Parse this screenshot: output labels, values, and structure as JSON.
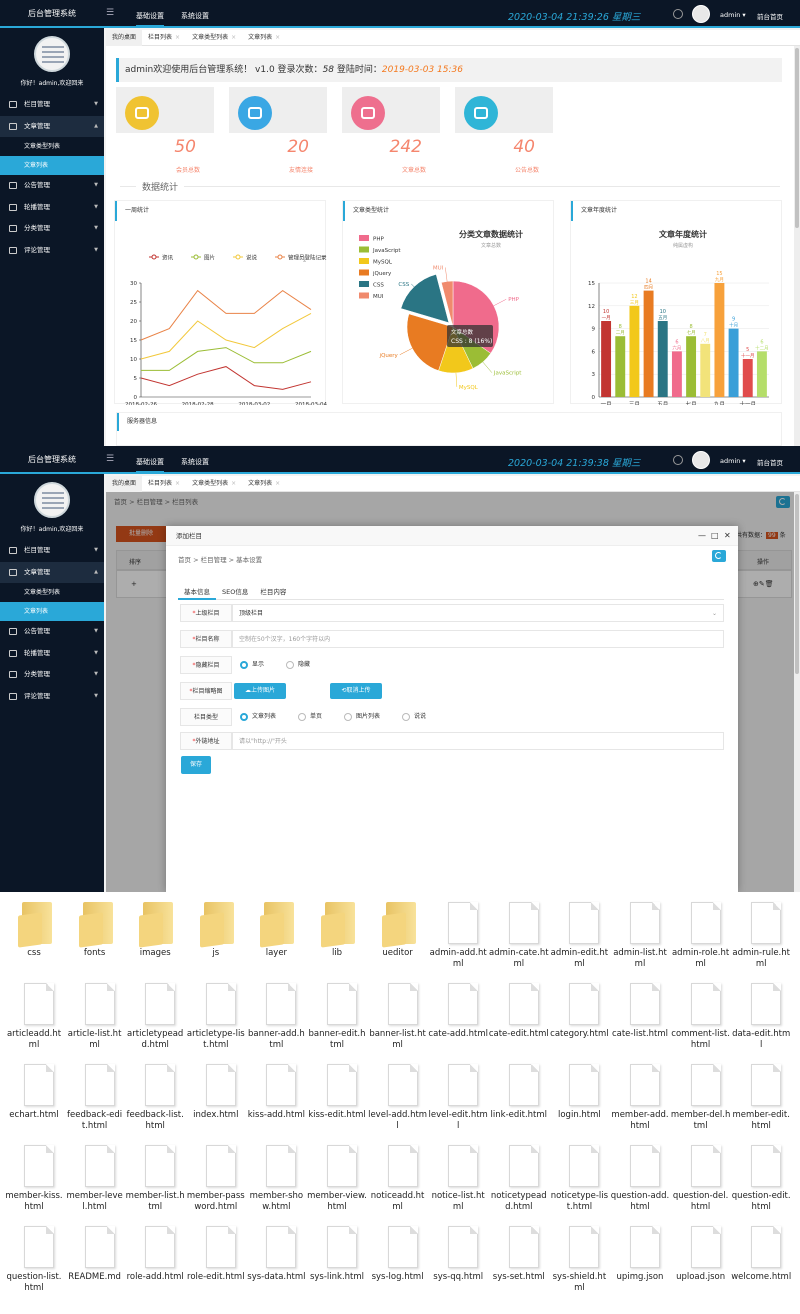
{
  "app": {
    "title": "后台管理系统",
    "nav_tabs": [
      "基础设置",
      "系统设置"
    ],
    "user": "admin ▾",
    "home_link": "前台首页",
    "welcome": "你好！admin,欢迎回来"
  },
  "screen1": {
    "clock": "2020-03-04  21:39:26  星期三",
    "sidebar": [
      {
        "label": "栏目管理",
        "arrow": "▼"
      },
      {
        "label": "文章管理",
        "arrow": "▲"
      },
      {
        "label": "文章类型列表",
        "sub": true
      },
      {
        "label": "文章列表",
        "sub": true,
        "active": true
      },
      {
        "label": "公告管理",
        "arrow": "▼"
      },
      {
        "label": "轮播管理",
        "arrow": "▼"
      },
      {
        "label": "分类管理",
        "arrow": "▼"
      },
      {
        "label": "评论管理",
        "arrow": "▼"
      }
    ],
    "tabs": [
      "我的桌面",
      "栏目列表",
      "文章类型列表",
      "文章列表"
    ],
    "welcome_box": {
      "text": "admin欢迎使用后台管理系统！ v1.0   登录次数：",
      "count": "58",
      "time_label": "   登陆时间：",
      "time": "2019-03-03 15:36"
    },
    "stats": [
      {
        "value": "50",
        "label": "会员总数",
        "color": "#f0c332"
      },
      {
        "value": "20",
        "label": "友情连接",
        "color": "#3aa7e4"
      },
      {
        "value": "242",
        "label": "文章总数",
        "color": "#ee6f8e"
      },
      {
        "value": "40",
        "label": "公告总数",
        "color": "#2fb5d7"
      }
    ],
    "section_title": "数据统计",
    "server_title": "服务器信息"
  },
  "chart_data": [
    {
      "type": "line",
      "panel_title": "一周统计",
      "x": [
        "2018-02-26",
        "2018-02-27",
        "2018-02-28",
        "2018-03-01",
        "2018-03-02",
        "2018-03-03",
        "2018-03-04"
      ],
      "x_ticks": [
        "2018-02-26",
        "2018-02-28",
        "2018-03-02",
        "2018-03-04"
      ],
      "ylim": [
        0,
        30
      ],
      "yticks": [
        0,
        5,
        10,
        15,
        20,
        25,
        30
      ],
      "series": [
        {
          "name": "资讯",
          "color": "#c23531",
          "values": [
            5,
            3,
            6,
            8,
            3,
            2,
            4
          ]
        },
        {
          "name": "图片",
          "color": "#9bbd35",
          "values": [
            7,
            7,
            12,
            13,
            9,
            9,
            12
          ]
        },
        {
          "name": "说说",
          "color": "#f2c83b",
          "values": [
            10,
            12,
            20,
            15,
            13,
            18,
            22
          ]
        },
        {
          "name": "管理员登陆记录",
          "color": "#e98347",
          "values": [
            15,
            18,
            28,
            22,
            22,
            28,
            23
          ]
        }
      ],
      "grid": false
    },
    {
      "type": "pie",
      "panel_title": "文章类型统计",
      "title": "分类文章数据统计",
      "subtitle": "文章总数",
      "slices": [
        {
          "name": "PHP",
          "value": 17,
          "color": "#f06b8c"
        },
        {
          "name": "JavaScript",
          "value": 4,
          "color": "#9bbd35"
        },
        {
          "name": "MySQL",
          "value": 6,
          "color": "#f2c81b"
        },
        {
          "name": "jQuery",
          "value": 12,
          "color": "#e87b22"
        },
        {
          "name": "CSS",
          "value": 8,
          "color": "#2a7584"
        },
        {
          "name": "MUI",
          "value": 2,
          "color": "#f08a6d"
        }
      ],
      "tooltip_title": "文章总数",
      "tooltip_value": "CSS : 8 (16%)",
      "legend": "left"
    },
    {
      "type": "bar",
      "panel_title": "文章年度统计",
      "title": "文章年度统计",
      "subtitle": "纯属虚构",
      "categories": [
        "一月",
        "二月",
        "三月",
        "四月",
        "五月",
        "六月",
        "七月",
        "八月",
        "九月",
        "十月",
        "十一月",
        "十二月"
      ],
      "x_ticks": [
        "一月",
        "三月",
        "五月",
        "七月",
        "九月",
        "十一月"
      ],
      "values": [
        10,
        8,
        12,
        14,
        10,
        6,
        8,
        7,
        15,
        9,
        5,
        6
      ],
      "colors": [
        "#c23531",
        "#9bbd35",
        "#f2c81b",
        "#e87b22",
        "#2a7584",
        "#f06b8c",
        "#9bbd35",
        "#f2e37a",
        "#f7a13b",
        "#3a9fd8",
        "#e04c4c",
        "#b5de6a"
      ],
      "ylim": [
        0,
        15
      ],
      "yticks": [
        0,
        3,
        6,
        9,
        12,
        15
      ],
      "grid": true
    }
  ],
  "screen2": {
    "clock": "2020-03-04  21:39:38  星期三",
    "sidebar": [
      {
        "label": "栏目管理",
        "arrow": "▼"
      },
      {
        "label": "文章管理",
        "arrow": "▲"
      },
      {
        "label": "文章类型列表",
        "sub": true
      },
      {
        "label": "文章列表",
        "sub": true,
        "active": true
      },
      {
        "label": "公告管理",
        "arrow": "▼"
      },
      {
        "label": "轮播管理",
        "arrow": "▼"
      },
      {
        "label": "分类管理",
        "arrow": "▼"
      },
      {
        "label": "评论管理",
        "arrow": "▼"
      }
    ],
    "tabs": [
      "我的桌面",
      "栏目列表",
      "文章类型列表",
      "文章列表"
    ],
    "breadcrumb": "首页  >  栏目管理  >  栏目列表",
    "bg_delete_btn": "批量删除",
    "bg_count_label": "共有数据：",
    "bg_count": "99",
    "bg_count_unit": "条",
    "bg_col_sort": "排序",
    "bg_col_op": "操作",
    "modal": {
      "title": "添加栏目",
      "breadcrumb": "首页  >  栏目管理  >  基本设置",
      "tabs": [
        "基本信息",
        "SEO信息",
        "栏目内容"
      ],
      "parent_label": "上级栏目",
      "parent_value": "顶级栏目",
      "name_label": "栏目名称",
      "name_placeholder": "空制在50个汉字，160个字符以内",
      "hidden_label": "隐藏栏目",
      "hidden_options": [
        "显示",
        "隐藏"
      ],
      "thumb_label": "栏目缩略图",
      "upload_btn": "上传图片",
      "cancel_upload_btn": "取消上传",
      "type_label": "栏目类型",
      "type_options": [
        "文章列表",
        "单页",
        "图片列表",
        "说说"
      ],
      "link_label": "外链地址",
      "link_placeholder": "请以\"http://\"开头",
      "save_btn": "保存"
    }
  },
  "files": [
    {
      "name": "css",
      "type": "folder"
    },
    {
      "name": "fonts",
      "type": "folder"
    },
    {
      "name": "images",
      "type": "folder"
    },
    {
      "name": "js",
      "type": "folder"
    },
    {
      "name": "layer",
      "type": "folder"
    },
    {
      "name": "lib",
      "type": "folder"
    },
    {
      "name": "ueditor",
      "type": "folder"
    },
    {
      "name": "admin-add.html",
      "type": "file"
    },
    {
      "name": "admin-cate.html",
      "type": "file"
    },
    {
      "name": "admin-edit.html",
      "type": "file"
    },
    {
      "name": "admin-list.html",
      "type": "file"
    },
    {
      "name": "admin-role.html",
      "type": "file"
    },
    {
      "name": "admin-rule.html",
      "type": "file"
    },
    {
      "name": "articleadd.html",
      "type": "file"
    },
    {
      "name": "article-list.html",
      "type": "file"
    },
    {
      "name": "articletypeadd.html",
      "type": "file"
    },
    {
      "name": "articletype-list.html",
      "type": "file"
    },
    {
      "name": "banner-add.html",
      "type": "file"
    },
    {
      "name": "banner-edit.html",
      "type": "file"
    },
    {
      "name": "banner-list.html",
      "type": "file"
    },
    {
      "name": "cate-add.html",
      "type": "file"
    },
    {
      "name": "cate-edit.html",
      "type": "file"
    },
    {
      "name": "category.html",
      "type": "file"
    },
    {
      "name": "cate-list.html",
      "type": "file"
    },
    {
      "name": "comment-list.html",
      "type": "file"
    },
    {
      "name": "data-edit.html",
      "type": "file"
    },
    {
      "name": "echart.html",
      "type": "file"
    },
    {
      "name": "feedback-edit.html",
      "type": "file"
    },
    {
      "name": "feedback-list.html",
      "type": "file"
    },
    {
      "name": "index.html",
      "type": "file"
    },
    {
      "name": "kiss-add.html",
      "type": "file"
    },
    {
      "name": "kiss-edit.html",
      "type": "file"
    },
    {
      "name": "level-add.html",
      "type": "file"
    },
    {
      "name": "level-edit.html",
      "type": "file"
    },
    {
      "name": "link-edit.html",
      "type": "file"
    },
    {
      "name": "login.html",
      "type": "file"
    },
    {
      "name": "member-add.html",
      "type": "file"
    },
    {
      "name": "member-del.html",
      "type": "file"
    },
    {
      "name": "member-edit.html",
      "type": "file"
    },
    {
      "name": "member-kiss.html",
      "type": "file"
    },
    {
      "name": "member-level.html",
      "type": "file"
    },
    {
      "name": "member-list.html",
      "type": "file"
    },
    {
      "name": "member-password.html",
      "type": "file"
    },
    {
      "name": "member-show.html",
      "type": "file"
    },
    {
      "name": "member-view.html",
      "type": "file"
    },
    {
      "name": "noticeadd.html",
      "type": "file"
    },
    {
      "name": "notice-list.html",
      "type": "file"
    },
    {
      "name": "noticetypeadd.html",
      "type": "file"
    },
    {
      "name": "noticetype-list.html",
      "type": "file"
    },
    {
      "name": "question-add.html",
      "type": "file"
    },
    {
      "name": "question-del.html",
      "type": "file"
    },
    {
      "name": "question-edit.html",
      "type": "file"
    },
    {
      "name": "question-list.html",
      "type": "file"
    },
    {
      "name": "README.md",
      "type": "file"
    },
    {
      "name": "role-add.html",
      "type": "file"
    },
    {
      "name": "role-edit.html",
      "type": "file"
    },
    {
      "name": "sys-data.html",
      "type": "file"
    },
    {
      "name": "sys-link.html",
      "type": "file"
    },
    {
      "name": "sys-log.html",
      "type": "file"
    },
    {
      "name": "sys-qq.html",
      "type": "file"
    },
    {
      "name": "sys-set.html",
      "type": "file"
    },
    {
      "name": "sys-shield.html",
      "type": "file"
    },
    {
      "name": "upimg.json",
      "type": "file"
    },
    {
      "name": "upload.json",
      "type": "file"
    },
    {
      "name": "welcome.html",
      "type": "file"
    }
  ]
}
